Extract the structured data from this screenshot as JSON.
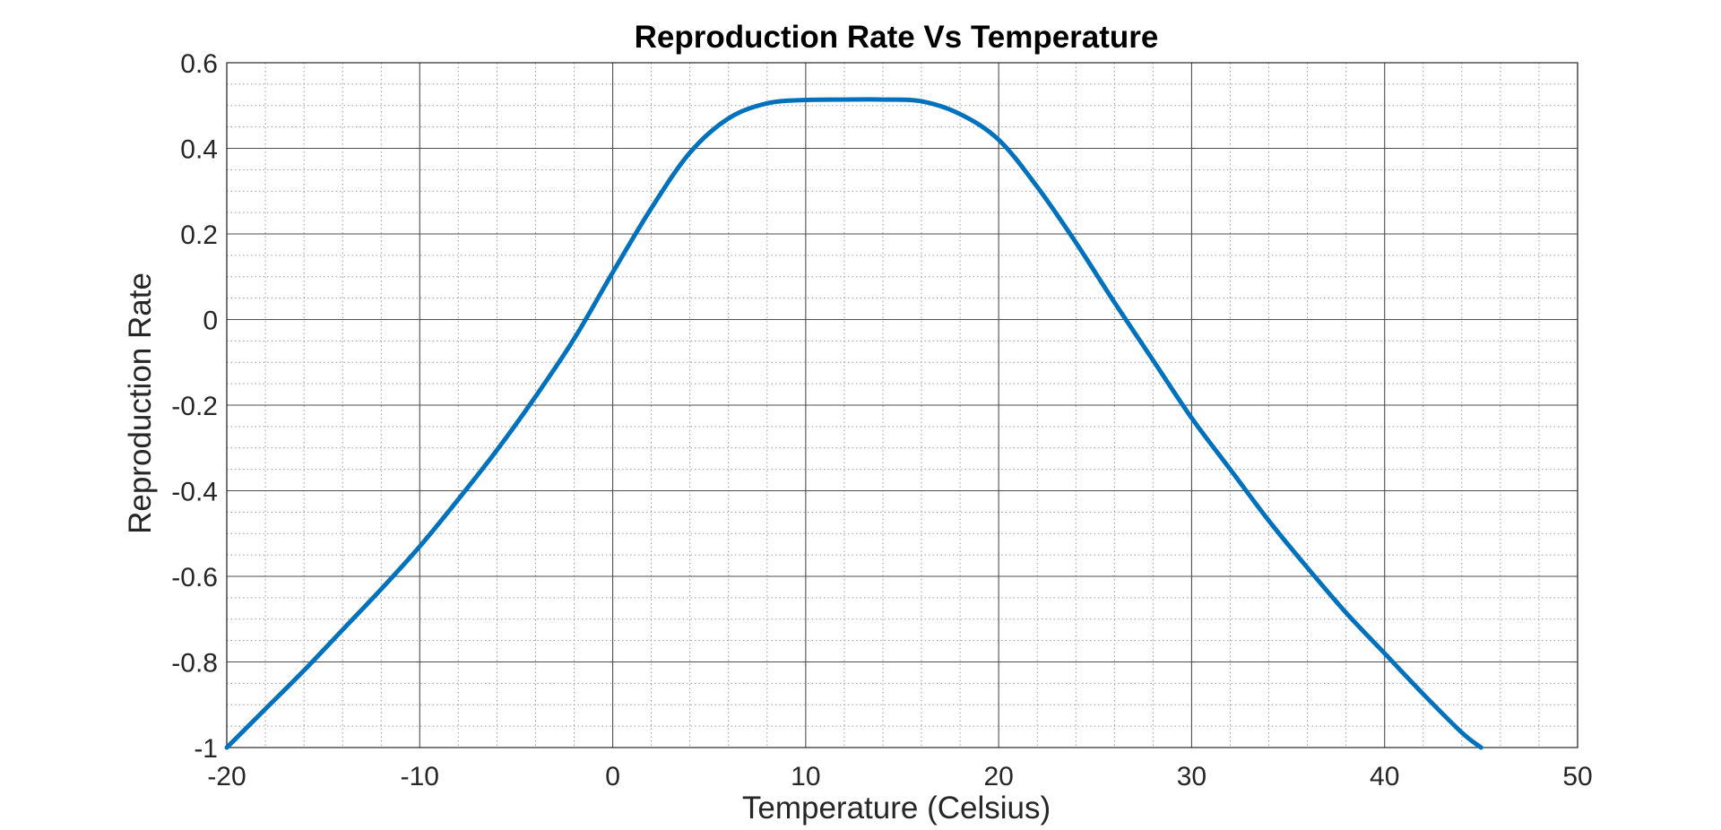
{
  "chart_data": {
    "type": "line",
    "title": "Reproduction Rate Vs Temperature",
    "xlabel": "Temperature (Celsius)",
    "ylabel": "Reproduction Rate",
    "xlim": [
      -20,
      50
    ],
    "ylim": [
      -1,
      0.6
    ],
    "xticks": [
      -20,
      -10,
      0,
      10,
      20,
      30,
      40,
      50
    ],
    "xtick_labels": [
      "-20",
      "-10",
      "0",
      "10",
      "20",
      "30",
      "40",
      "50"
    ],
    "yticks": [
      -1,
      -0.8,
      -0.6,
      -0.4,
      -0.2,
      0,
      0.2,
      0.4,
      0.6
    ],
    "ytick_labels": [
      "-1",
      "-0.8",
      "-0.6",
      "-0.4",
      "-0.2",
      "0",
      "0.2",
      "0.4",
      "0.6"
    ],
    "grid": "major solid, minor dotted",
    "legend": "none",
    "line_color": "#0072BD",
    "series": [
      {
        "x": [
          -20,
          -18,
          -16,
          -14,
          -12,
          -10,
          -8,
          -6,
          -4,
          -2,
          0,
          2,
          4,
          6,
          8,
          10,
          12,
          14,
          16,
          18,
          20,
          22,
          24,
          26,
          28,
          30,
          32,
          34,
          36,
          38,
          40,
          42,
          44,
          45
        ],
        "y": [
          -1.0,
          -0.91,
          -0.82,
          -0.725,
          -0.63,
          -0.53,
          -0.42,
          -0.305,
          -0.18,
          -0.045,
          0.11,
          0.26,
          0.39,
          0.47,
          0.505,
          0.513,
          0.514,
          0.514,
          0.51,
          0.48,
          0.42,
          0.31,
          0.18,
          0.04,
          -0.095,
          -0.23,
          -0.35,
          -0.47,
          -0.58,
          -0.685,
          -0.78,
          -0.875,
          -0.965,
          -1.0
        ]
      }
    ]
  }
}
